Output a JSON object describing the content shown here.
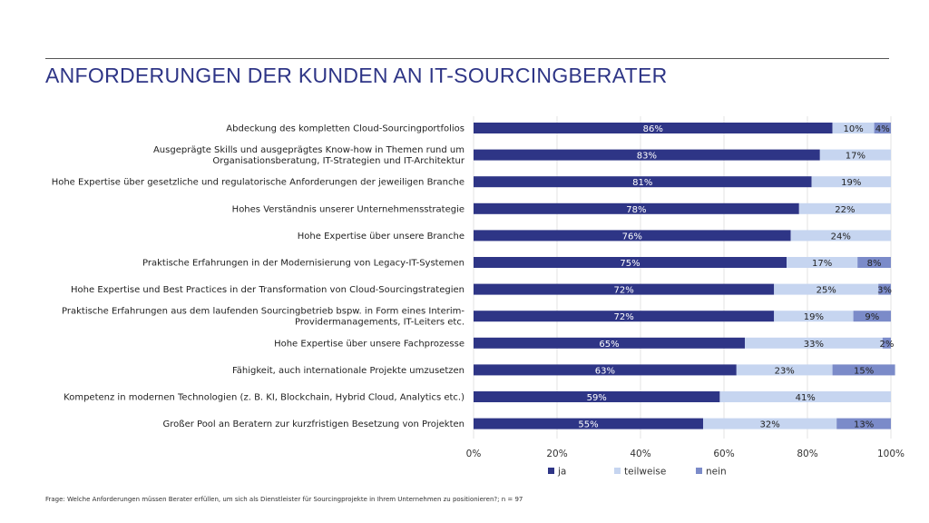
{
  "title": "ANFORDERUNGEN DER KUNDEN AN IT-SOURCINGBERATER",
  "footnote": "Frage: Welche Anforderungen müssen Berater erfüllen, um sich  als Dienstleister für Sourcingprojekte in Ihrem Unternehmen zu positionieren?; n = 97",
  "chart_data": {
    "type": "bar",
    "orientation": "horizontal",
    "stacked": true,
    "categories": [
      [
        "Abdeckung des kompletten Cloud-Sourcingportfolios"
      ],
      [
        "Ausgeprägte Skills und ausgeprägtes Know-how in Themen rund um",
        "Organisationsberatung, IT-Strategien und IT-Architektur"
      ],
      [
        "Hohe Expertise über gesetzliche und regulatorische Anforderungen der jeweiligen Branche"
      ],
      [
        "Hohes Verständnis unserer Unternehmensstrategie"
      ],
      [
        "Hohe Expertise über unsere Branche"
      ],
      [
        "Praktische Erfahrungen in der Modernisierung von Legacy-IT-Systemen"
      ],
      [
        "Hohe Expertise und Best Practices in der Transformation von Cloud-Sourcingstrategien"
      ],
      [
        "Praktische Erfahrungen aus dem laufenden Sourcingbetrieb bspw. in Form eines Interim-",
        "Providermanagements, IT-Leiters etc."
      ],
      [
        "Hohe Expertise über unsere Fachprozesse"
      ],
      [
        "Fähigkeit, auch internationale Projekte umzusetzen"
      ],
      [
        "Kompetenz in modernen Technologien (z. B. KI, Blockchain, Hybrid Cloud, Analytics etc.)"
      ],
      [
        "Großer Pool an Beratern zur kurzfristigen Besetzung von Projekten"
      ]
    ],
    "series": [
      {
        "name": "ja",
        "color": "#2e3586",
        "label_color": "#ffffff",
        "values": [
          86,
          83,
          81,
          78,
          76,
          75,
          72,
          72,
          65,
          63,
          59,
          55
        ]
      },
      {
        "name": "teilweise",
        "color": "#c6d5f0",
        "label_color": "#222222",
        "values": [
          10,
          17,
          19,
          22,
          24,
          17,
          25,
          19,
          33,
          23,
          41,
          32
        ]
      },
      {
        "name": "nein",
        "color": "#7b8bc9",
        "label_color": "#222222",
        "values": [
          4,
          0,
          0,
          0,
          0,
          8,
          3,
          9,
          2,
          15,
          0,
          13
        ]
      }
    ],
    "value_format": "{v}%",
    "xlim": [
      0,
      100
    ],
    "xticks": [
      "0%",
      "20%",
      "40%",
      "60%",
      "80%",
      "100%"
    ],
    "grid": true,
    "legend_position": "bottom"
  }
}
